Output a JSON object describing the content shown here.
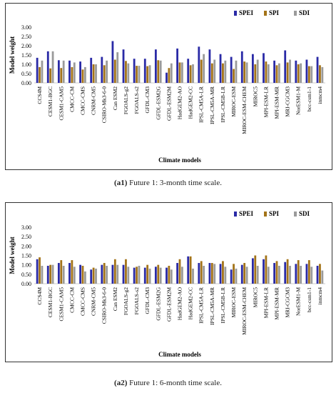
{
  "chart_data": [
    {
      "type": "bar",
      "ylabel": "Model weight",
      "xlabel": "Climate models",
      "ylim": [
        0,
        3
      ],
      "ytick_step": 0.5,
      "grid": false,
      "legend_position": "top-right",
      "categories": [
        "CCS4M",
        "CESM1-BGC",
        "CESM1-CAM5",
        "CMCC-CM",
        "CMCC-CMS",
        "CNRM-CM5",
        "CSIRO-Mk3-6-0",
        "Can ESM2",
        "FGOALS-g2",
        "FGOALS-s2",
        "GFDL-CM3",
        "GFDL-ESM2G",
        "GFDL-ESM2M",
        "HadGEM2-AO",
        "HadGEM2-CC",
        "IPSL-CM5A-LR",
        "IPSL-CM5A-MR",
        "IPSL-CM5B-LR",
        "MIROC-ESM",
        "MIROC-ESM-CHEM",
        "MIROC5",
        "MPI-ESM-LR",
        "MPI-ESM-MR",
        "MRI-CGCM3",
        "NorESM1-M",
        "bcc-csm1-1",
        "inmcm4"
      ],
      "series": [
        {
          "name": "SPEI",
          "values": [
            1.35,
            1.7,
            1.22,
            1.2,
            1.15,
            1.35,
            1.4,
            2.25,
            1.8,
            1.3,
            1.3,
            1.8,
            0.55,
            1.85,
            1.3,
            1.95,
            1.8,
            1.55,
            1.4,
            1.7,
            1.55,
            1.6,
            1.2,
            1.75,
            1.2,
            1.25,
            1.4
          ]
        },
        {
          "name": "SPI",
          "values": [
            0.85,
            0.78,
            0.8,
            0.85,
            0.72,
            1.0,
            0.95,
            1.25,
            1.18,
            0.92,
            0.9,
            1.22,
            0.8,
            1.1,
            0.95,
            1.25,
            1.05,
            1.05,
            0.75,
            1.15,
            1.0,
            1.15,
            0.95,
            1.1,
            1.0,
            0.9,
            0.95
          ]
        },
        {
          "name": "SDI",
          "values": [
            1.2,
            1.7,
            1.2,
            1.1,
            0.85,
            1.0,
            1.2,
            1.65,
            1.05,
            0.92,
            0.95,
            1.2,
            1.05,
            1.1,
            1.0,
            1.55,
            1.25,
            1.2,
            1.2,
            1.1,
            1.25,
            1.0,
            1.05,
            1.25,
            1.05,
            0.9,
            0.85
          ]
        }
      ]
    },
    {
      "type": "bar",
      "ylabel": "Model weight",
      "xlabel": "Climate models",
      "ylim": [
        0,
        3
      ],
      "ytick_step": 0.5,
      "grid": false,
      "legend_position": "top-right",
      "categories": [
        "CCS4M",
        "CESM1-BGC",
        "CESM1-CAM5",
        "CMCC-CM",
        "CMCC-CMS",
        "CNRM-CM5",
        "CSIRO-Mk3-6-0",
        "Can ESM2",
        "FGOALS-g2",
        "FGOALS-s2",
        "GFDL-CM3",
        "GFDL-ESM2G",
        "GFDL-ESM2M",
        "HadGEM2-AO",
        "HadGEM2-CC",
        "IPSL-CM5A-LR",
        "IPSL-CM5A-MR",
        "IPSL-CM5B-LR",
        "MIROC-ESM",
        "MIROC-ESM-CHEM",
        "MIROC5",
        "MPI-ESM-LR",
        "MPI-ESM-MR",
        "MRI-CGCM3",
        "NorESM1-M",
        "bcc-csm1-1",
        "inmcm4"
      ],
      "series": [
        {
          "name": "SPEI",
          "values": [
            1.3,
            0.95,
            1.1,
            1.1,
            1.0,
            0.75,
            1.0,
            1.0,
            1.0,
            0.85,
            0.85,
            0.9,
            0.85,
            1.1,
            1.45,
            1.1,
            1.1,
            1.05,
            0.75,
            1.0,
            1.35,
            1.3,
            1.1,
            1.15,
            1.05,
            1.05,
            0.95
          ]
        },
        {
          "name": "SPI",
          "values": [
            1.4,
            1.0,
            1.25,
            1.25,
            0.95,
            0.85,
            1.1,
            1.3,
            1.3,
            0.9,
            1.0,
            1.0,
            0.95,
            1.3,
            1.45,
            1.2,
            1.1,
            1.2,
            1.05,
            1.1,
            1.5,
            1.5,
            1.2,
            1.3,
            1.25,
            1.25,
            1.05
          ]
        },
        {
          "name": "SDI",
          "values": [
            0.95,
            1.0,
            0.95,
            0.9,
            0.65,
            0.8,
            0.95,
            1.0,
            0.9,
            0.95,
            0.8,
            0.85,
            0.75,
            0.9,
            0.8,
            0.95,
            1.05,
            0.9,
            0.8,
            0.9,
            0.95,
            0.9,
            0.95,
            0.95,
            0.95,
            0.9,
            0.7
          ]
        }
      ]
    }
  ],
  "colors": {
    "SPEI": "#2a2aa6",
    "SPI": "#a37318",
    "SDI": "#9a9a9a"
  },
  "captions": [
    {
      "label": "(a1)",
      "text": "Future 1: 3-month time scale."
    },
    {
      "label": "(a2)",
      "text": "Future 1: 6-month time scale."
    }
  ]
}
